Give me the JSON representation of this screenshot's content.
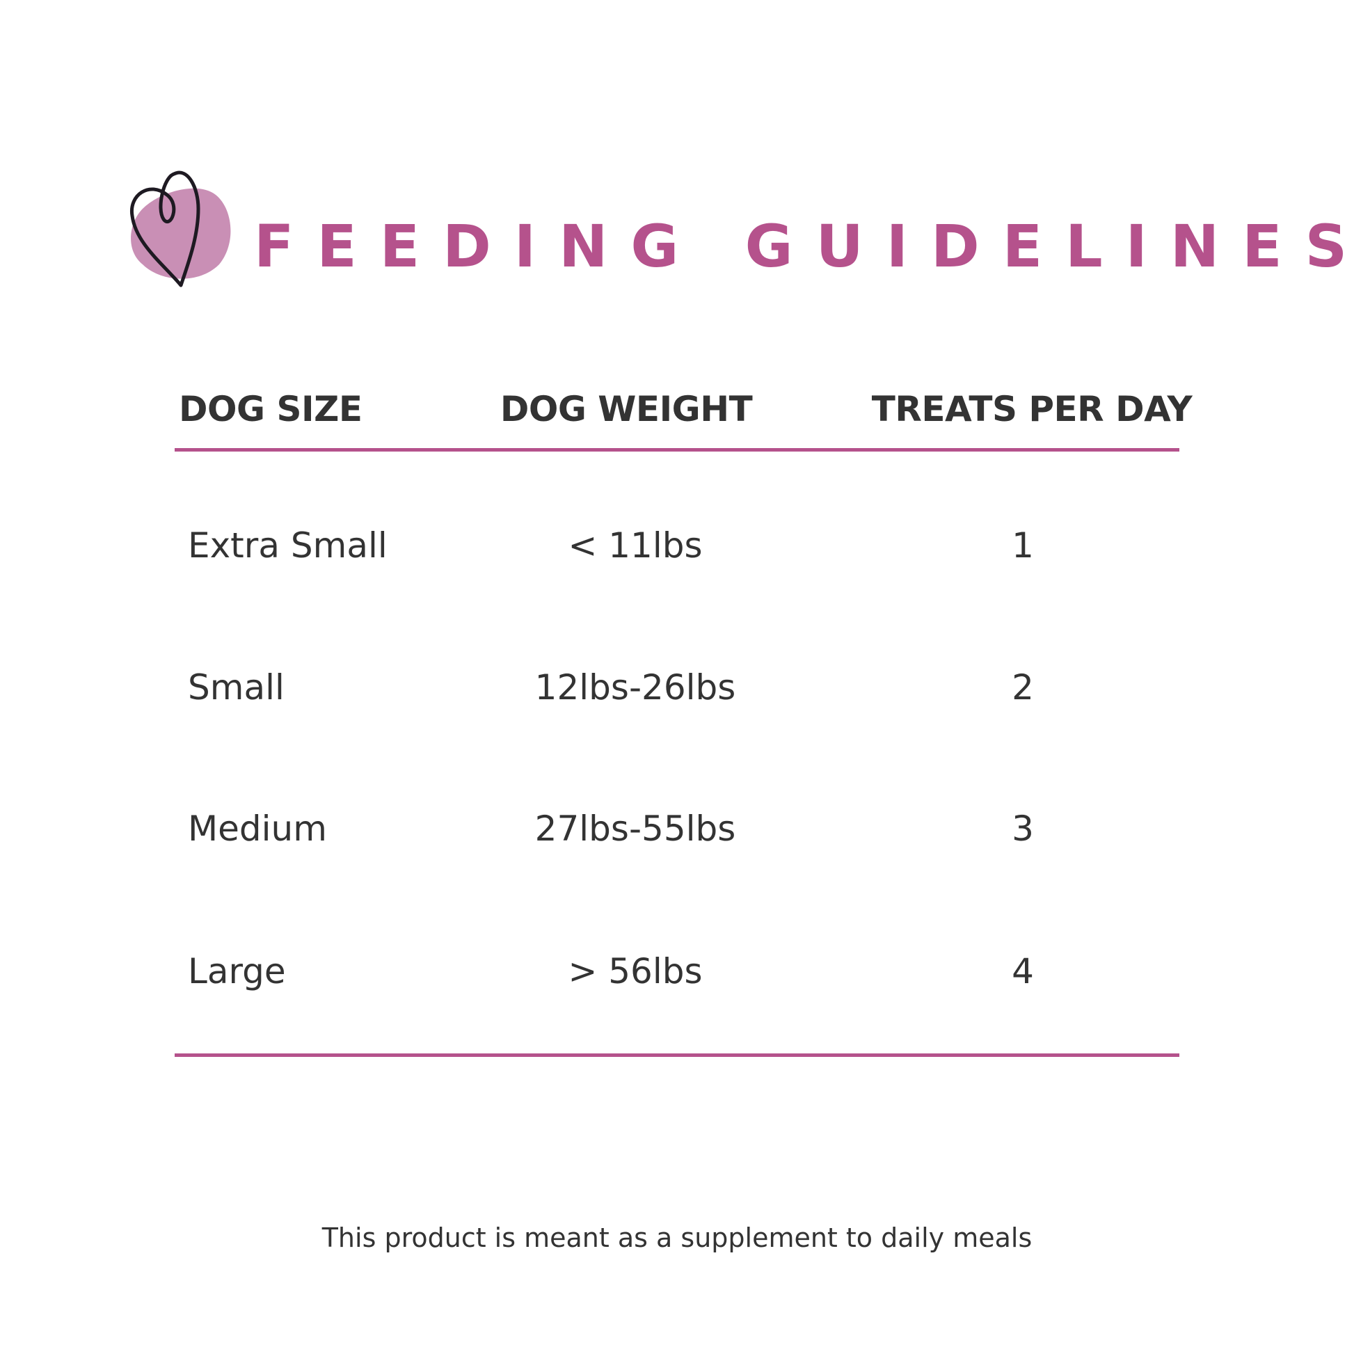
{
  "title": "FEEDING GUIDELINES",
  "logo": {
    "icon": "heart-icon",
    "blob_color": "#c98fb5",
    "accent": "#b5528c"
  },
  "table": {
    "headers": [
      "DOG SIZE",
      "DOG WEIGHT",
      "TREATS PER DAY"
    ],
    "rows": [
      [
        "Extra Small",
        "< 11lbs",
        "1"
      ],
      [
        "Small",
        "12lbs-26lbs",
        "2"
      ],
      [
        "Medium",
        "27lbs-55lbs",
        "3"
      ],
      [
        "Large",
        "> 56lbs",
        "4"
      ]
    ]
  },
  "footer": "This product is meant as a supplement to daily meals"
}
